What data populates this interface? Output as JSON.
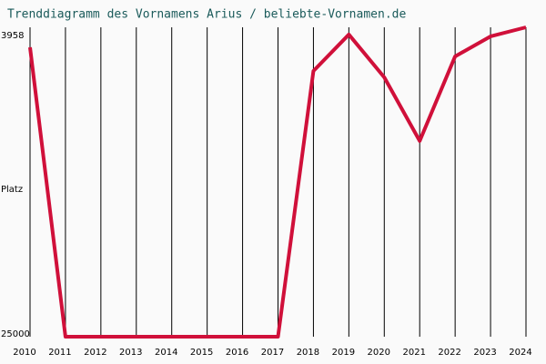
{
  "chart_data": {
    "type": "line",
    "title": "Trenddiagramm des Vornamens Arius / beliebte-Vornamen.de",
    "y_label": "Platz",
    "x": [
      2010,
      2011,
      2012,
      2013,
      2014,
      2015,
      2016,
      2017,
      2018,
      2019,
      2020,
      2021,
      2022,
      2023,
      2024
    ],
    "series": [
      {
        "color": "#d0103a",
        "values": [
          4600,
          25000,
          25000,
          25000,
          25000,
          25000,
          25000,
          25000,
          6270,
          3700,
          6720,
          11200,
          5240,
          3830,
          3190
        ]
      }
    ],
    "xlim": [
      2010,
      2024
    ],
    "xticks": [
      2010,
      2011,
      2012,
      2013,
      2014,
      2015,
      2016,
      2017,
      2018,
      2019,
      2020,
      2021,
      2022,
      2023,
      2024
    ],
    "ylim": [
      25000,
      3190
    ],
    "yticks": [
      3958,
      25000
    ],
    "grid": true
  }
}
